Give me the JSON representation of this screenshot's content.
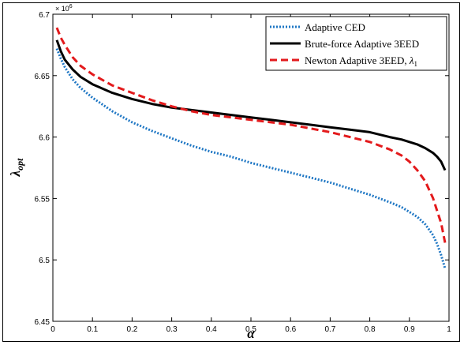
{
  "chart_data": {
    "type": "line",
    "title": "",
    "xlabel": "α",
    "ylabel": "λopt",
    "ylabel_main": "λ",
    "ylabel_sub": "opt",
    "exponent_label": "× 10",
    "exponent_power": "6",
    "xlim": [
      0,
      1
    ],
    "ylim": [
      6.45,
      6.7
    ],
    "y_scale_factor": 1000000,
    "xticks": [
      0,
      0.1,
      0.2,
      0.3,
      0.4,
      0.5,
      0.6,
      0.7,
      0.8,
      0.9,
      1
    ],
    "xtick_labels": [
      "0",
      "0.1",
      "0.2",
      "0.3",
      "0.4",
      "0.5",
      "0.6",
      "0.7",
      "0.8",
      "0.9",
      "1"
    ],
    "yticks": [
      6.45,
      6.5,
      6.55,
      6.6,
      6.65,
      6.7
    ],
    "ytick_labels": [
      "6.45",
      "6.5",
      "6.55",
      "6.6",
      "6.65",
      "6.7"
    ],
    "grid": false,
    "legend_position": "top-right",
    "series": [
      {
        "name": "Adaptive CED",
        "color": "#1f77c4",
        "style": "dotted",
        "x": [
          0.01,
          0.02,
          0.03,
          0.05,
          0.07,
          0.1,
          0.15,
          0.2,
          0.25,
          0.3,
          0.35,
          0.4,
          0.45,
          0.5,
          0.55,
          0.6,
          0.65,
          0.7,
          0.75,
          0.8,
          0.85,
          0.88,
          0.9,
          0.92,
          0.94,
          0.96,
          0.97,
          0.98,
          0.99
        ],
        "values": [
          6.672,
          6.664,
          6.657,
          6.647,
          6.64,
          6.632,
          6.621,
          6.612,
          6.605,
          6.599,
          6.593,
          6.588,
          6.584,
          6.579,
          6.575,
          6.571,
          6.567,
          6.563,
          6.558,
          6.553,
          6.547,
          6.543,
          6.539,
          6.535,
          6.529,
          6.52,
          6.513,
          6.504,
          6.493
        ]
      },
      {
        "name": "Brute-force Adaptive 3EED",
        "color": "#000000",
        "style": "solid",
        "x": [
          0.01,
          0.02,
          0.03,
          0.05,
          0.07,
          0.1,
          0.15,
          0.2,
          0.25,
          0.3,
          0.35,
          0.4,
          0.45,
          0.5,
          0.55,
          0.6,
          0.65,
          0.7,
          0.75,
          0.8,
          0.85,
          0.88,
          0.9,
          0.92,
          0.94,
          0.96,
          0.97,
          0.98,
          0.99
        ],
        "values": [
          6.679,
          6.67,
          6.663,
          6.655,
          6.649,
          6.643,
          6.636,
          6.631,
          6.627,
          6.624,
          6.622,
          6.62,
          6.618,
          6.616,
          6.614,
          6.612,
          6.61,
          6.608,
          6.606,
          6.604,
          6.6,
          6.598,
          6.596,
          6.594,
          6.591,
          6.587,
          6.584,
          6.58,
          6.573
        ]
      },
      {
        "name": "Newton Adaptive 3EED, λ1",
        "label_text": "Newton Adaptive 3EED, ",
        "label_symbol": "λ",
        "label_sub": "1",
        "color": "#e31a1c",
        "style": "dashed",
        "x": [
          0.01,
          0.02,
          0.03,
          0.05,
          0.07,
          0.1,
          0.15,
          0.2,
          0.25,
          0.3,
          0.35,
          0.4,
          0.45,
          0.5,
          0.55,
          0.6,
          0.65,
          0.7,
          0.75,
          0.8,
          0.85,
          0.88,
          0.9,
          0.92,
          0.94,
          0.96,
          0.97,
          0.98,
          0.99
        ],
        "values": [
          6.689,
          6.681,
          6.675,
          6.665,
          6.658,
          6.651,
          6.642,
          6.636,
          6.63,
          6.625,
          6.621,
          6.618,
          6.616,
          6.614,
          6.612,
          6.61,
          6.607,
          6.604,
          6.6,
          6.596,
          6.59,
          6.585,
          6.58,
          6.573,
          6.564,
          6.55,
          6.54,
          6.53,
          6.514
        ]
      }
    ]
  }
}
